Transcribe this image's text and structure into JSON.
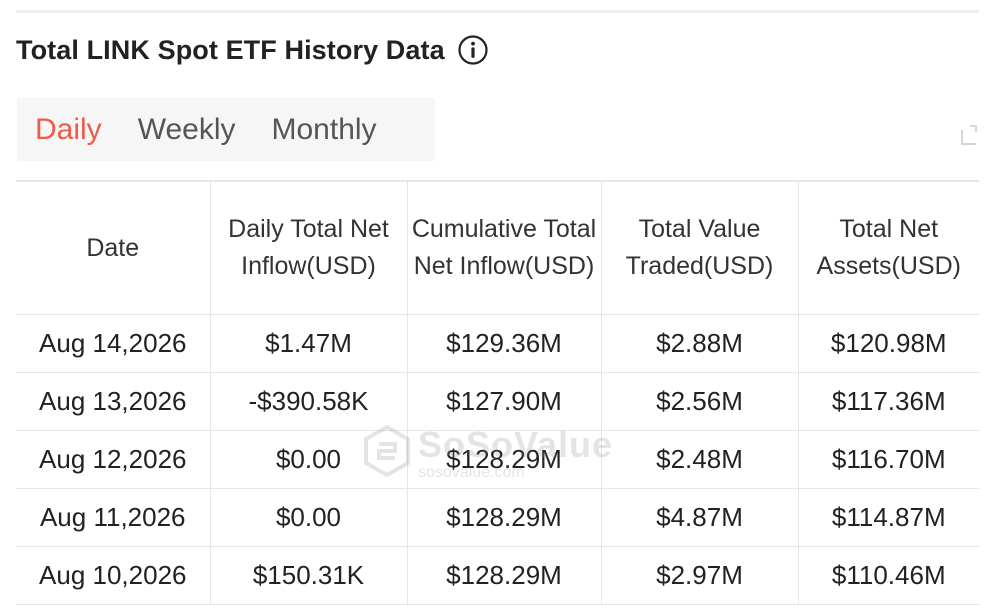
{
  "title": "Total LINK Spot ETF History Data",
  "tabs": [
    {
      "label": "Daily",
      "active": true
    },
    {
      "label": "Weekly",
      "active": false
    },
    {
      "label": "Monthly",
      "active": false
    }
  ],
  "table": {
    "headers": [
      "Date",
      "Daily Total Net Inflow(USD)",
      "Cumulative Total Net Inflow(USD)",
      "Total Value Traded(USD)",
      "Total Net Assets(USD)"
    ],
    "rows": [
      {
        "date": "Aug 14,2026",
        "daily": "$1.47M",
        "daily_sign": "pos",
        "cumulative": "$129.36M",
        "traded": "$2.88M",
        "assets": "$120.98M"
      },
      {
        "date": "Aug 13,2026",
        "daily": "-$390.58K",
        "daily_sign": "neg",
        "cumulative": "$127.90M",
        "traded": "$2.56M",
        "assets": "$117.36M"
      },
      {
        "date": "Aug 12,2026",
        "daily": "$0.00",
        "daily_sign": "neu",
        "cumulative": "$128.29M",
        "traded": "$2.48M",
        "assets": "$116.70M"
      },
      {
        "date": "Aug 11,2026",
        "daily": "$0.00",
        "daily_sign": "neu",
        "cumulative": "$128.29M",
        "traded": "$4.87M",
        "assets": "$114.87M"
      },
      {
        "date": "Aug 10,2026",
        "daily": "$150.31K",
        "daily_sign": "pos",
        "cumulative": "$128.29M",
        "traded": "$2.97M",
        "assets": "$110.46M"
      }
    ]
  },
  "watermark": {
    "name": "SoSoValue",
    "url": "sosovalue.com"
  },
  "colors": {
    "accent": "#ef5b47",
    "positive": "#2bab72",
    "negative": "#e5423b",
    "tab_background": "#f6f6f6",
    "border": "#e6e6e6"
  },
  "icons": [
    "info-icon",
    "export-icon",
    "sosovalue-logo-icon"
  ]
}
